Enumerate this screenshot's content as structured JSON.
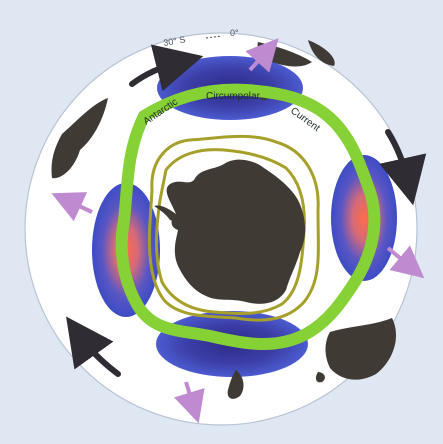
{
  "map": {
    "labels": {
      "lat30": "30° S",
      "lon0": "0°",
      "antarctic": "Antarctic",
      "circumpolar": "Circumpolar",
      "current": "Current"
    }
  },
  "colors": {
    "frame_bg": "#dfe7f3",
    "ocean": "#ffffff",
    "land": "#3f3a34",
    "acc_band": "#86d136",
    "front_line": "#a6a02a",
    "gyre_blue": "#4a58c8",
    "gyre_core": "#ff6b4a",
    "outflow_arrow": "#c08ad0",
    "circulation_arrow": "#2f2d33"
  },
  "icons": {
    "circulation": "curved-arrow-icon",
    "outflow": "arrow-icon"
  }
}
